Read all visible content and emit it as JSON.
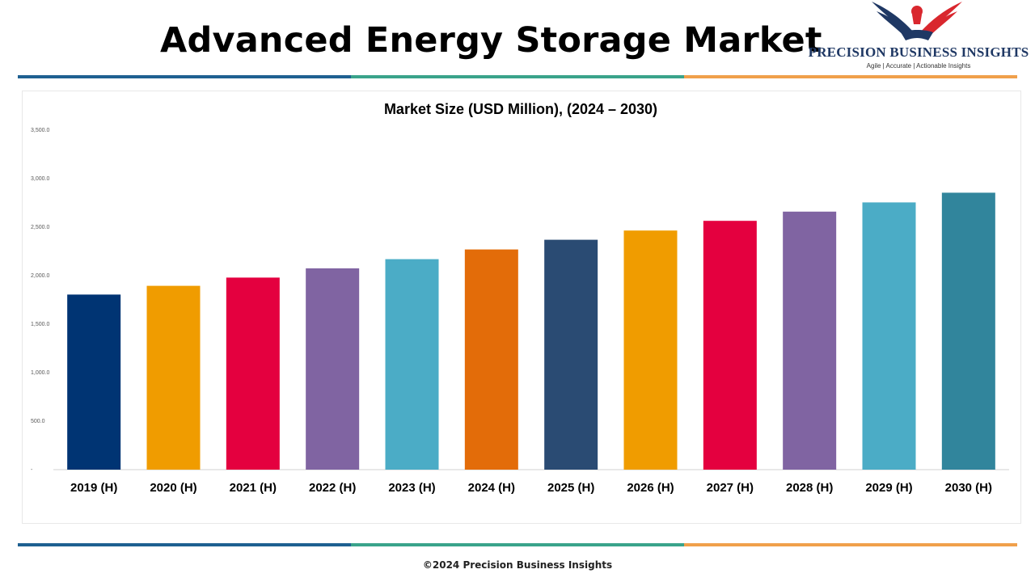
{
  "header": {
    "title": "Advanced Energy Storage Market"
  },
  "logo": {
    "name": "PRECISION BUSINESS INSIGHTS",
    "tagline": "Agile | Accurate | Actionable Insights",
    "colors": {
      "navy": "#1f3864",
      "red": "#d9272e"
    }
  },
  "stripes": {
    "colors": [
      "#1e6091",
      "#3aa38b",
      "#f0a04b"
    ]
  },
  "chart_data": {
    "type": "bar",
    "title": "Market Size (USD Million), (2024 – 2030)",
    "xlabel": "",
    "ylabel": "",
    "ylim": [
      0,
      3500
    ],
    "y_ticks": [
      {
        "value": 0,
        "label": "-"
      },
      {
        "value": 500,
        "label": "500.0"
      },
      {
        "value": 1000,
        "label": "1,000.0"
      },
      {
        "value": 1500,
        "label": "1,500.0"
      },
      {
        "value": 2000,
        "label": "2,000.0"
      },
      {
        "value": 2500,
        "label": "2,500.0"
      },
      {
        "value": 3000,
        "label": "3,000.0"
      },
      {
        "value": 3500,
        "label": "3,500.0"
      }
    ],
    "grid": false,
    "legend": "none",
    "categories": [
      "2019 (H)",
      "2020 (H)",
      "2021 (H)",
      "2022 (H)",
      "2023 (H)",
      "2024 (H)",
      "2025 (H)",
      "2026 (H)",
      "2027 (H)",
      "2028 (H)",
      "2029 (H)",
      "2030 (H)"
    ],
    "values": [
      1805,
      1895,
      1980,
      2075,
      2170,
      2270,
      2370,
      2465,
      2565,
      2660,
      2755,
      2855
    ],
    "colors": [
      "#003473",
      "#f09c00",
      "#e4003f",
      "#8064a2",
      "#4bacc6",
      "#e36c09",
      "#2a4b73",
      "#f09c00",
      "#e4003f",
      "#8064a2",
      "#4bacc6",
      "#31859c"
    ]
  },
  "footer": {
    "copyright": "©2024 Precision Business Insights"
  }
}
